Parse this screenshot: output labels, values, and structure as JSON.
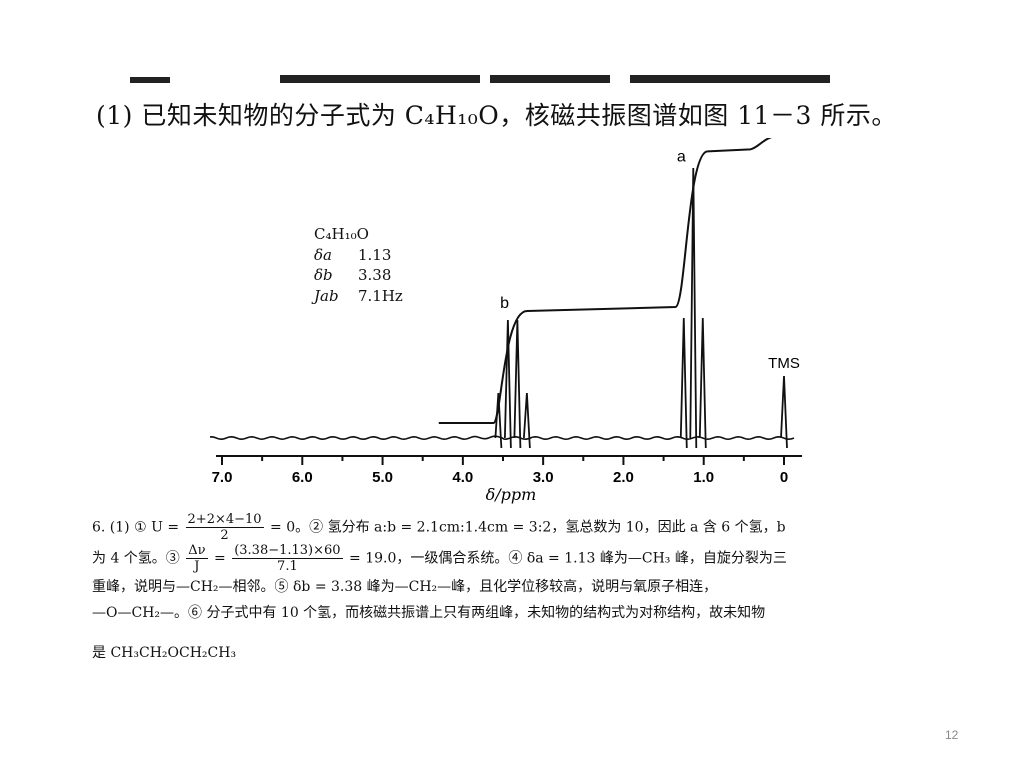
{
  "question": {
    "text": "(1) 已知未知物的分子式为 C₄H₁₀O，核磁共振图谱如图 11－3 所示。"
  },
  "chart_data": {
    "type": "line",
    "title": "",
    "xlabel": "δ/ppm",
    "ylabel": "",
    "xlim": [
      7.0,
      0
    ],
    "x_ticks": [
      "7.0",
      "6.0",
      "5.0",
      "4.0",
      "3.0",
      "2.0",
      "1.0",
      "0"
    ],
    "peaks": [
      {
        "label": "b",
        "shift": 3.38,
        "multiplicity": "quartet"
      },
      {
        "label": "a",
        "shift": 1.13,
        "multiplicity": "triplet"
      },
      {
        "label": "TMS",
        "shift": 0.0,
        "multiplicity": "singlet"
      }
    ],
    "integration_ratio": {
      "a": 3,
      "b": 2
    },
    "annotation": {
      "formula": "C₄H₁₀O",
      "rows": [
        {
          "symbol": "δa",
          "value": "1.13"
        },
        {
          "symbol": "δb",
          "value": "3.38"
        },
        {
          "symbol": "Jab",
          "value": "7.1Hz"
        }
      ]
    }
  },
  "solution": {
    "line1_a": "6. (1) ① U =",
    "frac1_num": "2+2×4−10",
    "frac1_den": "2",
    "line1_b": "= 0。② 氢分布 a:b = 2.1cm:1.4cm = 3:2，氢总数为 10，因此 a 含 6 个氢，b",
    "line2_a": "为 4 个氢。③",
    "frac2_num": "Δν",
    "frac2_den": "J",
    "frac3_num": "(3.38−1.13)×60",
    "frac3_den": "7.1",
    "line2_b": "= 19.0，一级偶合系统。④ δa = 1.13 峰为—CH₃ 峰，自旋分裂为三",
    "line3": "重峰，说明与—CH₂—相邻。⑤ δb = 3.38 峰为—CH₂—峰，且化学位移较高，说明与氧原子相连，",
    "line4": "—O—CH₂—。⑥ 分子式中有 10 个氢，而核磁共振谱上只有两组峰，未知物的结构式为对称结构，故未知物",
    "line5": "是 CH₃CH₂OCH₂CH₃"
  },
  "page_number": "12"
}
